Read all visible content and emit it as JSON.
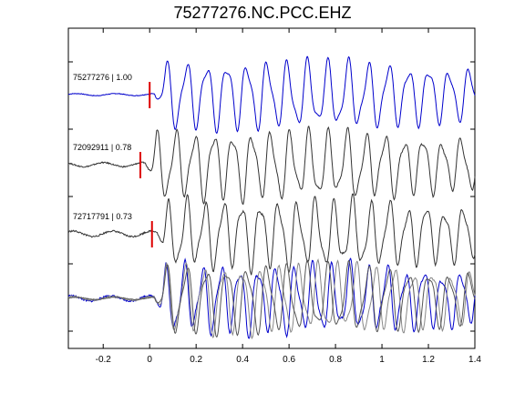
{
  "chart_data": {
    "type": "line",
    "title": "75277276.NC.PCC.EHZ",
    "xlabel": "",
    "ylabel": "",
    "xlim": [
      -0.35,
      1.4
    ],
    "xticks": [
      -0.2,
      0,
      0.2,
      0.4,
      0.6,
      0.8,
      1,
      1.2,
      1.4
    ],
    "xtick_labels": [
      "-0.2",
      "0",
      "0.2",
      "0.4",
      "0.6",
      "0.8",
      "1",
      "1.2",
      "1.4"
    ],
    "grid": false,
    "traces": [
      {
        "label": "75277276 | 1.00",
        "event_id": "75277276",
        "correlation": 1.0,
        "color": "#0000cc",
        "pick_time": 0.0,
        "pick_color": "#dd0000",
        "freq": 11.5,
        "noise": 0.03
      },
      {
        "label": "72092911 | 0.78",
        "event_id": "72092911",
        "correlation": 0.78,
        "color": "#333333",
        "pick_time": -0.04,
        "pick_color": "#dd0000",
        "freq": 12.2,
        "noise": 0.06
      },
      {
        "label": "72717791 | 0.73",
        "event_id": "72717791",
        "correlation": 0.73,
        "color": "#333333",
        "pick_time": 0.01,
        "pick_color": "#dd0000",
        "freq": 12.6,
        "noise": 0.08
      }
    ],
    "stack": {
      "colors": [
        "#555555",
        "#888888",
        "#0000cc"
      ],
      "description": "overlay of all traces"
    }
  }
}
